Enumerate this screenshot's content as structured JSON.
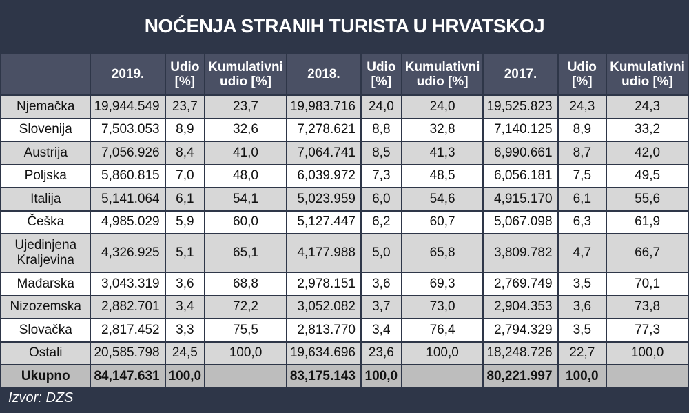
{
  "chart_data": {
    "type": "table",
    "title": "NOĆENJA STRANIH TURISTA U HRVATSKOJ",
    "columns": [
      "",
      "2019.",
      "Udio [%]",
      "Kumulativni udio [%]",
      "2018.",
      "Udio [%]",
      "Kumulativni udio [%]",
      "2017.",
      "Udio [%]",
      "Kumulativni udio [%]"
    ],
    "rows": [
      [
        "Njemačka",
        "19,944.549",
        "23,7",
        "23,7",
        "19,983.716",
        "24,0",
        "24,0",
        "19,525.823",
        "24,3",
        "24,3"
      ],
      [
        "Slovenija",
        "7,503.053",
        "8,9",
        "32,6",
        "7,278.621",
        "8,8",
        "32,8",
        "7,140.125",
        "8,9",
        "33,2"
      ],
      [
        "Austrija",
        "7,056.926",
        "8,4",
        "41,0",
        "7,064.741",
        "8,5",
        "41,3",
        "6,990.661",
        "8,7",
        "42,0"
      ],
      [
        "Poljska",
        "5,860.815",
        "7,0",
        "48,0",
        "6,039.972",
        "7,3",
        "48,5",
        "6,056.181",
        "7,5",
        "49,5"
      ],
      [
        "Italija",
        "5,141.064",
        "6,1",
        "54,1",
        "5,023.959",
        "6,0",
        "54,6",
        "4,915.170",
        "6,1",
        "55,6"
      ],
      [
        "Češka",
        "4,985.029",
        "5,9",
        "60,0",
        "5,127.447",
        "6,2",
        "60,7",
        "5,067.098",
        "6,3",
        "61,9"
      ],
      [
        "Ujedinjena Kraljevina",
        "4,326.925",
        "5,1",
        "65,1",
        "4,177.988",
        "5,0",
        "65,8",
        "3,809.782",
        "4,7",
        "66,7"
      ],
      [
        "Mađarska",
        "3,043.319",
        "3,6",
        "68,8",
        "2,978.151",
        "3,6",
        "69,3",
        "2,769.749",
        "3,5",
        "70,1"
      ],
      [
        "Nizozemska",
        "2,882.701",
        "3,4",
        "72,2",
        "3,052.082",
        "3,7",
        "73,0",
        "2,904.353",
        "3,6",
        "73,8"
      ],
      [
        "Slovačka",
        "2,817.452",
        "3,3",
        "75,5",
        "2,813.770",
        "3,4",
        "76,4",
        "2,794.329",
        "3,5",
        "77,3"
      ],
      [
        "Ostali",
        "20,585.798",
        "24,5",
        "100,0",
        "19,634.696",
        "23,6",
        "100,0",
        "18,248.726",
        "22,7",
        "100,0"
      ]
    ],
    "total_row": [
      "Ukupno",
      "84,147.631",
      "100,0",
      "",
      "83,175.143",
      "100,0",
      "",
      "80,221.997",
      "100,0",
      ""
    ]
  },
  "source": "Izvor: DZS",
  "colors": {
    "background": "#2e3648",
    "header": "#4a5064",
    "row_alt": "#d7d7d7",
    "row": "#ffffff",
    "total": "#bdbdbd"
  }
}
